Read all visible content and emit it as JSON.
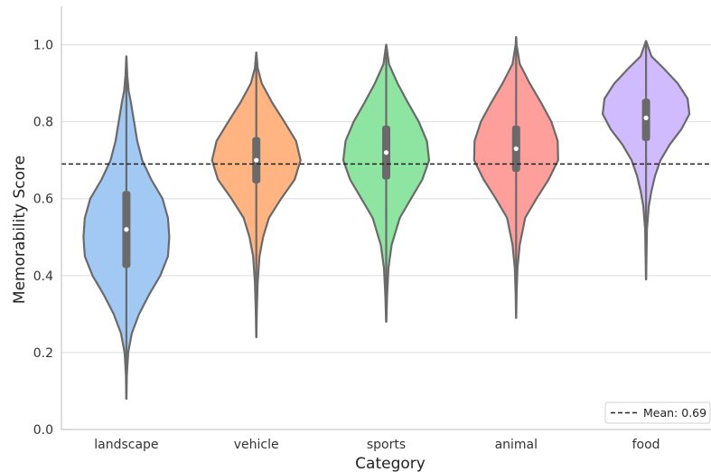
{
  "chart_data": {
    "type": "violin",
    "title": "",
    "xlabel": "Category",
    "ylabel": "Memorability Score",
    "ylim": [
      0.0,
      1.1
    ],
    "yticks": [
      0.0,
      0.2,
      0.4,
      0.6,
      0.8,
      1.0
    ],
    "ytick_labels": [
      "0.0",
      "0.2",
      "0.4",
      "0.6",
      "0.8",
      "1.0"
    ],
    "grid": "horizontal",
    "categories": [
      "landscape",
      "vehicle",
      "sports",
      "animal",
      "food"
    ],
    "colors": {
      "landscape": "#a1c9f4",
      "vehicle": "#ffb482",
      "sports": "#8de5a1",
      "animal": "#ff9f9b",
      "food": "#d0bbff",
      "outline": "#6a6a6a",
      "mean_line": "#222222"
    },
    "series": [
      {
        "category": "landscape",
        "min": 0.08,
        "q1": 0.42,
        "median": 0.52,
        "q3": 0.62,
        "max": 0.97,
        "profile": [
          [
            0.08,
            0.002
          ],
          [
            0.14,
            0.01
          ],
          [
            0.2,
            0.04
          ],
          [
            0.25,
            0.12
          ],
          [
            0.3,
            0.28
          ],
          [
            0.35,
            0.5
          ],
          [
            0.4,
            0.75
          ],
          [
            0.45,
            0.92
          ],
          [
            0.5,
            0.95
          ],
          [
            0.55,
            0.92
          ],
          [
            0.6,
            0.8
          ],
          [
            0.65,
            0.55
          ],
          [
            0.7,
            0.35
          ],
          [
            0.75,
            0.24
          ],
          [
            0.8,
            0.17
          ],
          [
            0.85,
            0.1
          ],
          [
            0.88,
            0.05
          ],
          [
            0.92,
            0.02
          ],
          [
            0.97,
            0.002
          ]
        ]
      },
      {
        "category": "vehicle",
        "min": 0.24,
        "q1": 0.64,
        "median": 0.7,
        "q3": 0.76,
        "max": 0.98,
        "profile": [
          [
            0.24,
            0.002
          ],
          [
            0.3,
            0.01
          ],
          [
            0.38,
            0.03
          ],
          [
            0.45,
            0.07
          ],
          [
            0.5,
            0.15
          ],
          [
            0.55,
            0.28
          ],
          [
            0.6,
            0.55
          ],
          [
            0.65,
            0.85
          ],
          [
            0.7,
            0.98
          ],
          [
            0.75,
            0.88
          ],
          [
            0.8,
            0.62
          ],
          [
            0.85,
            0.35
          ],
          [
            0.9,
            0.12
          ],
          [
            0.94,
            0.03
          ],
          [
            0.98,
            0.002
          ]
        ]
      },
      {
        "category": "sports",
        "min": 0.28,
        "q1": 0.65,
        "median": 0.72,
        "q3": 0.79,
        "max": 1.0,
        "profile": [
          [
            0.28,
            0.002
          ],
          [
            0.35,
            0.02
          ],
          [
            0.42,
            0.05
          ],
          [
            0.48,
            0.12
          ],
          [
            0.55,
            0.3
          ],
          [
            0.6,
            0.55
          ],
          [
            0.65,
            0.8
          ],
          [
            0.7,
            0.95
          ],
          [
            0.75,
            0.9
          ],
          [
            0.8,
            0.72
          ],
          [
            0.85,
            0.48
          ],
          [
            0.9,
            0.25
          ],
          [
            0.95,
            0.06
          ],
          [
            1.0,
            0.002
          ]
        ]
      },
      {
        "category": "animal",
        "min": 0.29,
        "q1": 0.67,
        "median": 0.73,
        "q3": 0.79,
        "max": 1.02,
        "profile": [
          [
            0.29,
            0.002
          ],
          [
            0.35,
            0.01
          ],
          [
            0.42,
            0.03
          ],
          [
            0.48,
            0.08
          ],
          [
            0.55,
            0.2
          ],
          [
            0.6,
            0.45
          ],
          [
            0.65,
            0.72
          ],
          [
            0.7,
            0.93
          ],
          [
            0.75,
            0.92
          ],
          [
            0.8,
            0.78
          ],
          [
            0.85,
            0.55
          ],
          [
            0.9,
            0.3
          ],
          [
            0.95,
            0.08
          ],
          [
            1.0,
            0.01
          ],
          [
            1.02,
            0.002
          ]
        ]
      },
      {
        "category": "food",
        "min": 0.39,
        "q1": 0.75,
        "median": 0.81,
        "q3": 0.86,
        "max": 1.01,
        "profile": [
          [
            0.39,
            0.002
          ],
          [
            0.45,
            0.01
          ],
          [
            0.52,
            0.02
          ],
          [
            0.58,
            0.06
          ],
          [
            0.62,
            0.12
          ],
          [
            0.66,
            0.2
          ],
          [
            0.7,
            0.32
          ],
          [
            0.74,
            0.52
          ],
          [
            0.78,
            0.78
          ],
          [
            0.82,
            0.96
          ],
          [
            0.86,
            0.92
          ],
          [
            0.9,
            0.7
          ],
          [
            0.94,
            0.38
          ],
          [
            0.97,
            0.12
          ],
          [
            1.01,
            0.002
          ]
        ]
      }
    ],
    "mean_line": {
      "value": 0.69,
      "label": "Mean: 0.69"
    },
    "legend": {
      "placement": "bottom-right"
    }
  }
}
